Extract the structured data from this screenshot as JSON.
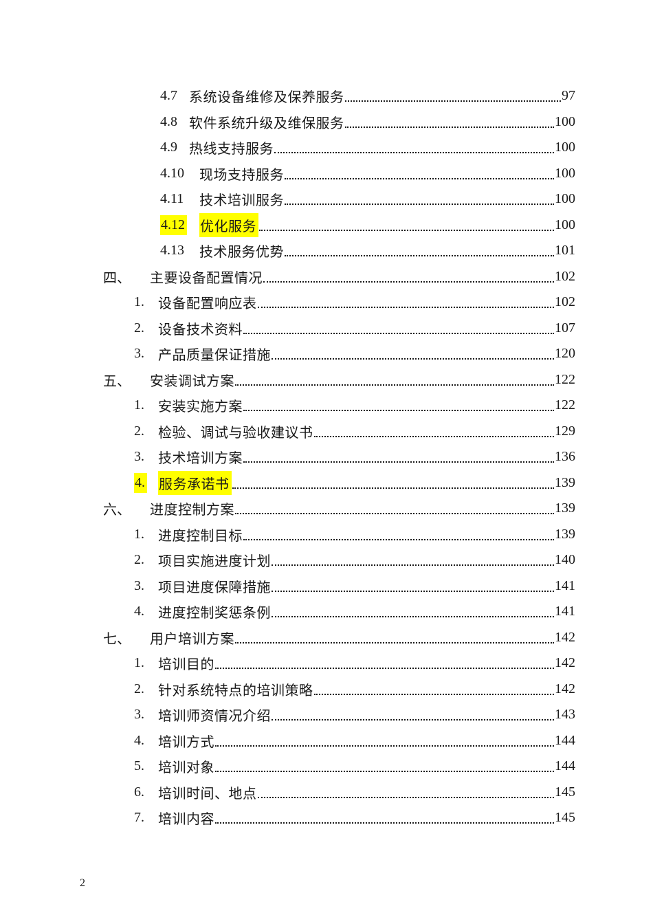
{
  "footer": {
    "page_number": "2"
  },
  "colors": {
    "highlight": "#ffff00",
    "text": "#1a1a1a"
  },
  "toc": {
    "entries": [
      {
        "level": 3,
        "num": "4.7",
        "title": "系统设备维修及保养服务",
        "page": "97",
        "highlight": false
      },
      {
        "level": 3,
        "num": "4.8",
        "title": "软件系统升级及维保服务",
        "page": "100",
        "highlight": false
      },
      {
        "level": 3,
        "num": "4.9",
        "title": "热线支持服务",
        "page": "100",
        "highlight": false
      },
      {
        "level": 3,
        "num": "4.10",
        "title": "现场支持服务",
        "page": "100",
        "highlight": false
      },
      {
        "level": 3,
        "num": "4.11",
        "title": "技术培训服务",
        "page": "100",
        "highlight": false
      },
      {
        "level": 3,
        "num": "4.12",
        "title": "优化服务",
        "page": "100",
        "highlight": true
      },
      {
        "level": 3,
        "num": "4.13",
        "title": "技术服务优势",
        "page": "101",
        "highlight": false
      },
      {
        "level": 1,
        "num": "四、",
        "title": "主要设备配置情况",
        "page": "102",
        "highlight": false
      },
      {
        "level": 2,
        "num": "1.",
        "title": "设备配置响应表",
        "page": "102",
        "highlight": false
      },
      {
        "level": 2,
        "num": "2.",
        "title": "设备技术资料",
        "page": "107",
        "highlight": false
      },
      {
        "level": 2,
        "num": "3.",
        "title": "产品质量保证措施",
        "page": "120",
        "highlight": false
      },
      {
        "level": 1,
        "num": "五、",
        "title": "安装调试方案",
        "page": "122",
        "highlight": false
      },
      {
        "level": 2,
        "num": "1.",
        "title": "安装实施方案",
        "page": "122",
        "highlight": false
      },
      {
        "level": 2,
        "num": "2.",
        "title": "检验、调试与验收建议书",
        "page": "129",
        "highlight": false
      },
      {
        "level": 2,
        "num": "3.",
        "title": "技术培训方案",
        "page": "136",
        "highlight": false
      },
      {
        "level": 2,
        "num": "4.",
        "title": "服务承诺书",
        "page": "139",
        "highlight": true
      },
      {
        "level": 1,
        "num": "六、",
        "title": "进度控制方案",
        "page": "139",
        "highlight": false
      },
      {
        "level": 2,
        "num": "1.",
        "title": "进度控制目标",
        "page": "139",
        "highlight": false
      },
      {
        "level": 2,
        "num": "2.",
        "title": "项目实施进度计划",
        "page": "140",
        "highlight": false
      },
      {
        "level": 2,
        "num": "3.",
        "title": "项目进度保障措施",
        "page": "141",
        "highlight": false
      },
      {
        "level": 2,
        "num": "4.",
        "title": "进度控制奖惩条例",
        "page": "141",
        "highlight": false
      },
      {
        "level": 1,
        "num": "七、",
        "title": "用户培训方案",
        "page": "142",
        "highlight": false
      },
      {
        "level": 2,
        "num": "1.",
        "title": "培训目的",
        "page": "142",
        "highlight": false
      },
      {
        "level": 2,
        "num": "2.",
        "title": "针对系统特点的培训策略",
        "page": "142",
        "highlight": false
      },
      {
        "level": 2,
        "num": "3.",
        "title": "培训师资情况介绍",
        "page": "143",
        "highlight": false
      },
      {
        "level": 2,
        "num": "4.",
        "title": "培训方式",
        "page": "144",
        "highlight": false
      },
      {
        "level": 2,
        "num": "5.",
        "title": "培训对象",
        "page": "144",
        "highlight": false
      },
      {
        "level": 2,
        "num": "6.",
        "title": "培训时间、地点",
        "page": "145",
        "highlight": false
      },
      {
        "level": 2,
        "num": "7.",
        "title": "培训内容",
        "page": "145",
        "highlight": false
      }
    ]
  }
}
